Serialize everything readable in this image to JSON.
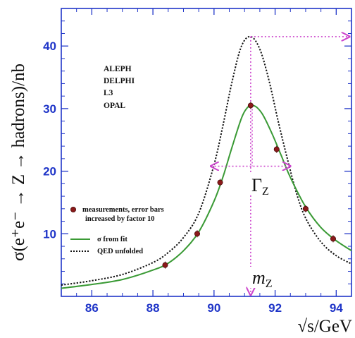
{
  "chart_data": {
    "type": "line",
    "title": "",
    "xlabel": "√s/GeV",
    "ylabel": "σ(e⁺e⁻ → Z → hadrons)/nb",
    "xlim": [
      85,
      94.5
    ],
    "ylim": [
      0,
      46
    ],
    "x_ticks": [
      "86",
      "88",
      "90",
      "92",
      "94"
    ],
    "y_ticks": [
      "10",
      "20",
      "30",
      "40"
    ],
    "experiments": [
      "ALEPH",
      "DELPHI",
      "L3",
      "OPAL"
    ],
    "legend": [
      {
        "label": "measurements, error bars",
        "label2": "increased by factor 10",
        "kind": "marker",
        "color": "#8b1a1a"
      },
      {
        "label": "σ from fit",
        "kind": "line",
        "color": "#3a9a35"
      },
      {
        "label": "QED unfolded",
        "kind": "dotted",
        "color": "#111111"
      }
    ],
    "measurements": [
      {
        "x": 88.4,
        "y": 5.0
      },
      {
        "x": 89.45,
        "y": 10.0
      },
      {
        "x": 90.2,
        "y": 18.2
      },
      {
        "x": 91.2,
        "y": 30.5
      },
      {
        "x": 92.05,
        "y": 23.5
      },
      {
        "x": 93.0,
        "y": 14.0
      },
      {
        "x": 93.9,
        "y": 9.2
      }
    ],
    "series": [
      {
        "name": "σ from fit",
        "color": "#3a9a35",
        "peak_x": 91.25,
        "peak_y": 30.5,
        "x": [
          85.0,
          86.0,
          87.0,
          88.0,
          88.5,
          89.0,
          89.5,
          90.0,
          90.3,
          90.6,
          90.9,
          91.1,
          91.25,
          91.4,
          91.6,
          91.9,
          92.2,
          92.5,
          93.0,
          93.5,
          94.0,
          94.5
        ],
        "y": [
          1.3,
          1.9,
          2.7,
          4.2,
          5.3,
          7.3,
          10.3,
          15.2,
          19.2,
          24.0,
          28.5,
          30.2,
          30.5,
          30.2,
          29.0,
          26.0,
          22.5,
          19.0,
          14.3,
          11.0,
          8.9,
          7.3
        ]
      },
      {
        "name": "QED unfolded",
        "color": "#111111",
        "peak_x": 91.2,
        "peak_y": 41.5,
        "x": [
          85.0,
          86.0,
          87.0,
          88.0,
          88.5,
          89.0,
          89.5,
          90.0,
          90.3,
          90.6,
          90.9,
          91.2,
          91.5,
          91.8,
          92.1,
          92.4,
          92.7,
          93.0,
          93.5,
          94.0,
          94.5
        ],
        "y": [
          1.8,
          2.5,
          3.5,
          5.4,
          7.0,
          9.4,
          13.3,
          21.0,
          27.5,
          34.5,
          40.0,
          41.5,
          39.5,
          34.5,
          28.0,
          22.0,
          16.5,
          12.5,
          8.7,
          6.5,
          5.2
        ]
      }
    ],
    "annotations": {
      "gamma_main": "Γ",
      "gamma_sub": "Z",
      "gamma_x1": 89.9,
      "gamma_x2": 92.5,
      "gamma_y": 20.8,
      "mass_main": "m",
      "mass_sub": "Z",
      "mass_x": 91.2,
      "peak_y": 41.5,
      "arrow_color": "#cc44cc"
    }
  }
}
